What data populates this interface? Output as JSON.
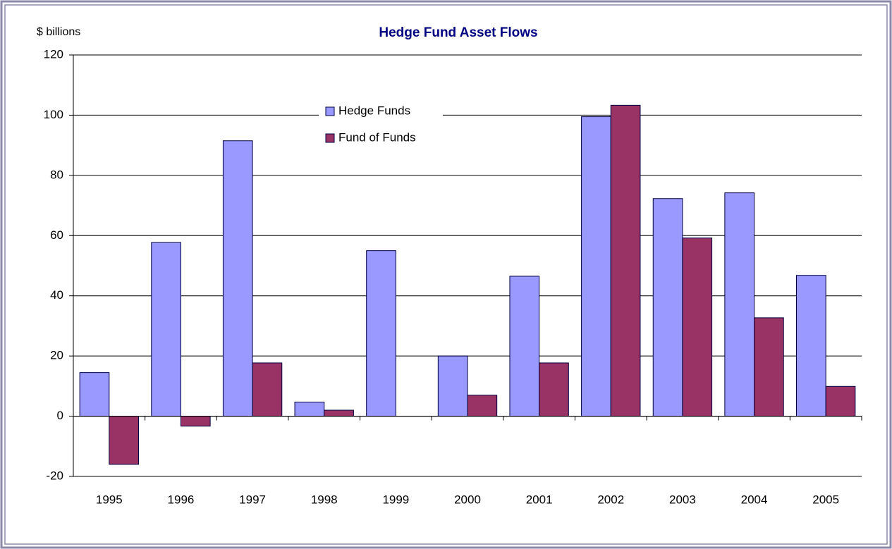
{
  "chart_data": {
    "type": "bar",
    "title": "Hedge Fund Asset Flows",
    "y_label": "$ billions",
    "categories": [
      "1995",
      "1996",
      "1997",
      "1998",
      "1999",
      "2000",
      "2001",
      "2002",
      "2003",
      "2004",
      "2005"
    ],
    "series": [
      {
        "name": "Hedge Funds",
        "color": "#9999ff",
        "values": [
          14.5,
          57.7,
          91.5,
          4.7,
          55,
          20,
          46.5,
          99.5,
          72.3,
          74.2,
          46.8
        ]
      },
      {
        "name": "Fund of Funds",
        "color": "#993366",
        "values": [
          -16,
          -3.3,
          17.7,
          2,
          0,
          7,
          17.7,
          103.3,
          59.2,
          32.7,
          9.9
        ]
      }
    ],
    "ylim": [
      -20,
      120
    ],
    "yticks": [
      -20,
      0,
      20,
      40,
      60,
      80,
      100,
      120
    ],
    "grid": true
  }
}
